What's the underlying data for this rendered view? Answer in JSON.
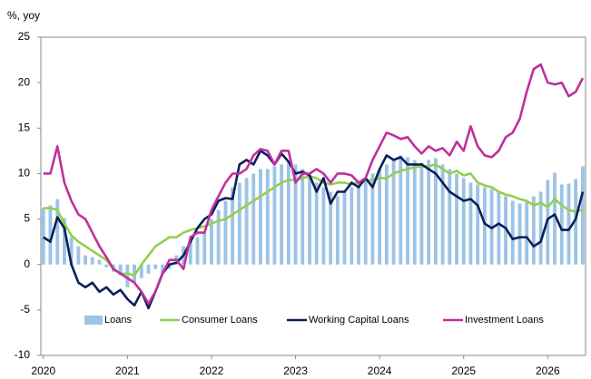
{
  "chart_data": {
    "type": "line",
    "y_label": "%, yoy",
    "x": [
      2020,
      2020.083,
      2020.167,
      2020.25,
      2020.333,
      2020.417,
      2020.5,
      2020.583,
      2020.667,
      2020.75,
      2020.833,
      2020.917,
      2021,
      2021.083,
      2021.167,
      2021.25,
      2021.333,
      2021.417,
      2021.5,
      2021.583,
      2021.667,
      2021.75,
      2021.833,
      2021.917,
      2022,
      2022.083,
      2022.167,
      2022.25,
      2022.333,
      2022.417,
      2022.5,
      2022.583,
      2022.667,
      2022.75,
      2022.833,
      2022.917,
      2023,
      2023.083,
      2023.167,
      2023.25,
      2023.333,
      2023.417,
      2023.5,
      2023.583,
      2023.667,
      2023.75,
      2023.833,
      2023.917,
      2024,
      2024.083,
      2024.167,
      2024.25,
      2024.333,
      2024.417,
      2024.5,
      2024.583,
      2024.667,
      2024.75,
      2024.833,
      2024.917,
      2025,
      2025.083,
      2025.167,
      2025.25,
      2025.333,
      2025.417,
      2025.5,
      2025.583,
      2025.667,
      2025.75,
      2025.833,
      2025.917,
      2026,
      2026.083,
      2026.167,
      2026.25,
      2026.333,
      2026.417
    ],
    "series": [
      {
        "name": "Loans",
        "type": "bar",
        "color": "#9dc3e6",
        "values": [
          6.2,
          6.5,
          7.2,
          5.1,
          3.0,
          2.0,
          1.0,
          0.8,
          0.5,
          -0.3,
          -0.8,
          -1.2,
          -2.5,
          -2.0,
          -1.5,
          -1.0,
          -0.5,
          -1.0,
          -0.5,
          1.0,
          2.0,
          2.5,
          3.0,
          3.5,
          5.0,
          6.0,
          7.0,
          8.5,
          9.0,
          9.5,
          10.0,
          10.5,
          10.5,
          10.8,
          11.0,
          11.2,
          11.0,
          10.5,
          10.0,
          9.0,
          8.5,
          8.0,
          7.5,
          8.0,
          8.5,
          9.0,
          9.5,
          10.0,
          10.5,
          11.0,
          11.5,
          12.0,
          11.8,
          11.5,
          11.2,
          11.5,
          11.7,
          11.0,
          10.5,
          10.0,
          9.5,
          9.0,
          8.8,
          8.5,
          8.3,
          8.0,
          7.5,
          7.0,
          6.7,
          7.0,
          7.5,
          8.0,
          9.3,
          10.1,
          8.8,
          8.9,
          9.4,
          10.8
        ]
      },
      {
        "name": "Consumer Loans",
        "type": "line",
        "color": "#92d050",
        "values": [
          6.2,
          6.2,
          6.0,
          4.5,
          3.2,
          2.5,
          2.0,
          1.5,
          1.0,
          0.5,
          -0.5,
          -1.0,
          -1.0,
          -1.2,
          0.0,
          1.0,
          2.0,
          2.5,
          3.0,
          3.0,
          3.5,
          3.8,
          4.0,
          4.2,
          4.5,
          4.8,
          5.0,
          5.5,
          6.0,
          6.5,
          7.0,
          7.5,
          8.0,
          8.5,
          9.0,
          9.3,
          9.3,
          9.5,
          9.7,
          9.5,
          9.0,
          8.8,
          9.0,
          9.0,
          8.8,
          9.0,
          9.2,
          9.3,
          9.5,
          9.5,
          10.0,
          10.3,
          10.5,
          10.7,
          10.8,
          10.8,
          11.0,
          10.5,
          10.0,
          10.3,
          9.8,
          10.0,
          9.0,
          8.7,
          8.5,
          8.0,
          7.7,
          7.5,
          7.2,
          7.0,
          6.5,
          6.8,
          6.3,
          7.2,
          6.5,
          6.0,
          5.8,
          6.0
        ]
      },
      {
        "name": "Working Capital Loans",
        "type": "line",
        "color": "#0c1e5b",
        "values": [
          3.0,
          2.5,
          5.2,
          4.0,
          0.0,
          -2.0,
          -2.5,
          -2.0,
          -3.0,
          -2.5,
          -3.3,
          -2.8,
          -3.8,
          -4.5,
          -3.0,
          -4.8,
          -3.0,
          -1.0,
          0.0,
          0.2,
          1.0,
          2.5,
          4.0,
          5.0,
          5.5,
          7.0,
          7.3,
          7.2,
          11.0,
          11.5,
          11.0,
          12.5,
          12.0,
          11.0,
          12.2,
          11.3,
          10.0,
          10.2,
          9.8,
          8.0,
          9.5,
          6.7,
          8.0,
          8.0,
          9.0,
          8.5,
          9.5,
          8.5,
          10.5,
          12.0,
          11.5,
          11.8,
          11.0,
          11.0,
          11.0,
          10.5,
          10.0,
          9.0,
          8.0,
          7.5,
          7.0,
          7.2,
          6.5,
          4.5,
          4.0,
          4.5,
          4.0,
          2.8,
          3.0,
          3.0,
          2.0,
          2.5,
          5.0,
          5.5,
          3.8,
          3.8,
          5.0,
          8.0
        ]
      },
      {
        "name": "Investment Loans",
        "type": "line",
        "color": "#c0309c",
        "values": [
          10.0,
          10.0,
          13.0,
          9.0,
          7.0,
          5.5,
          5.0,
          3.5,
          2.0,
          0.8,
          -0.5,
          -1.0,
          -1.5,
          -2.0,
          -3.0,
          -4.3,
          -3.0,
          -1.0,
          0.5,
          0.5,
          -0.5,
          3.0,
          3.5,
          3.5,
          6.0,
          7.5,
          9.0,
          10.0,
          10.0,
          10.5,
          12.0,
          12.7,
          12.5,
          11.0,
          12.5,
          12.5,
          9.0,
          10.0,
          10.0,
          10.5,
          10.0,
          9.0,
          10.0,
          10.0,
          9.8,
          9.0,
          9.5,
          11.5,
          13.0,
          14.5,
          14.2,
          13.8,
          14.0,
          13.0,
          12.2,
          13.0,
          12.5,
          12.8,
          12.0,
          13.5,
          12.5,
          15.2,
          13.0,
          12.0,
          11.8,
          12.5,
          14.0,
          14.5,
          16.0,
          19.0,
          21.5,
          22.0,
          20.0,
          19.8,
          20.0,
          18.5,
          19.0,
          20.5
        ]
      }
    ],
    "xlim": [
      2019.97,
      2026.45
    ],
    "xticks": [
      2020,
      2021,
      2022,
      2023,
      2024,
      2025,
      2026
    ],
    "ylim": [
      -10,
      25
    ],
    "yticks": [
      -10,
      -5,
      0,
      5,
      10,
      15,
      20,
      25
    ],
    "grid": false,
    "legend": "lower center"
  }
}
